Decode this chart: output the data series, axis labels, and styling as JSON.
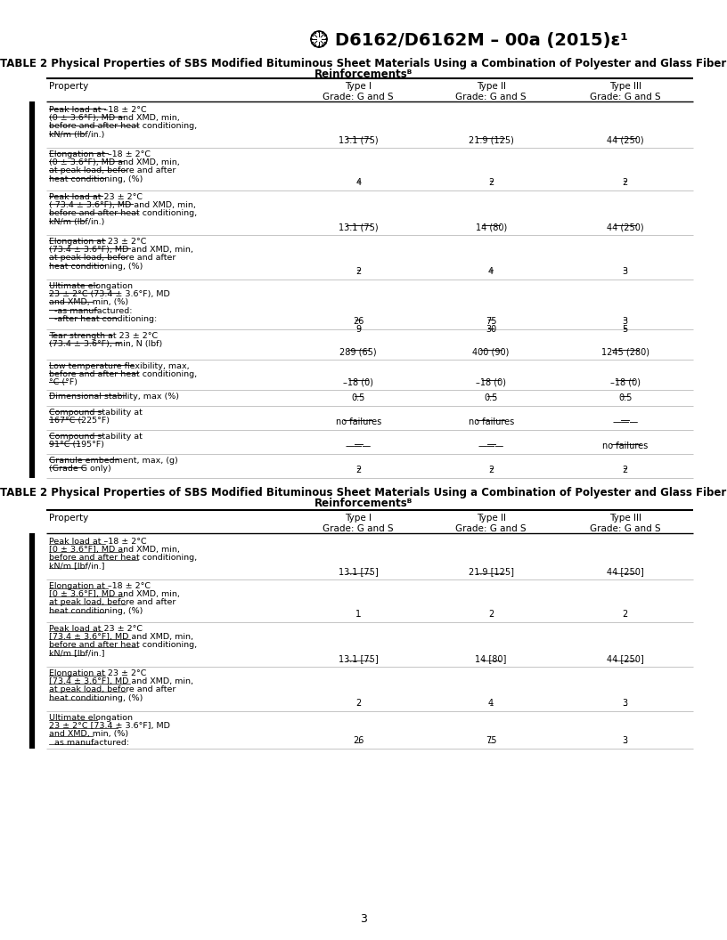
{
  "title": "D6162/D6162M – 00a (2015)ε¹",
  "page_num": "3",
  "table_title_line1": "TABLE 2 Physical Properties of SBS Modified Bituminous Sheet Materials Using a Combination of Polyester and Glass Fiber",
  "table_title_line2": "Reinforcementsᴮ",
  "col_header_property": "Property",
  "col_header_type1": "Type I\nGrade: G and S",
  "col_header_type2": "Type II\nGrade: G and S",
  "col_header_type3": "Type III\nGrade: G and S",
  "redline_rows": [
    {
      "property_lines": [
        "Peak load at –18 ± 2°C",
        "(0 ± 3.6°F), MD and XMD, min,",
        "before and after heat conditioning,",
        "kN/m (lbf/in.)"
      ],
      "type1": "13.1 (75)",
      "type2": "21.9 (125)",
      "type3": "44 (250)",
      "multi_val": false
    },
    {
      "property_lines": [
        "Elongation at –18 ± 2°C",
        "(0 ± 3.6°F), MD and XMD, min,",
        "at peak load, before and after",
        "heat conditioning, (%)"
      ],
      "type1": "4",
      "type2": "2",
      "type3": "2",
      "multi_val": false
    },
    {
      "property_lines": [
        "Peak load at 23 ± 2°C",
        "( 73.4 ± 3.6°F), MD and XMD, min,",
        "before and after heat conditioning,",
        "kN/m (lbf/in.)"
      ],
      "type1": "13.1 (75)",
      "type2": "14 (80)",
      "type3": "44 (250)",
      "multi_val": false
    },
    {
      "property_lines": [
        "Elongation at 23 ± 2°C",
        "(73.4 ± 3.6°F), MD and XMD, min,",
        "at peak load, before and after",
        "heat conditioning, (%)"
      ],
      "type1": "2",
      "type2": "4",
      "type3": "3",
      "multi_val": false
    },
    {
      "property_lines": [
        "Ultimate elongation",
        "23 ± 2°C (73.4 ± 3.6°F), MD",
        "and XMD, min, (%)",
        "  -as manufactured:",
        "  -after heat conditioning:"
      ],
      "type1": [
        "26",
        "9"
      ],
      "type2": [
        "75",
        "30"
      ],
      "type3": [
        "3",
        "5"
      ],
      "multi_val": true
    },
    {
      "property_lines": [
        "Tear strength at 23 ± 2°C",
        "(73.4 ± 3.6°F), min, N (lbf)"
      ],
      "type1": "289 (65)",
      "type2": "400 (90)",
      "type3": "1245 (280)",
      "multi_val": false
    },
    {
      "property_lines": [
        "Low temperature flexibility, max,",
        "before and after heat conditioning,",
        "°C (°F)"
      ],
      "type1": "–18 (0)",
      "type2": "–18 (0)",
      "type3": "–18 (0)",
      "multi_val": false
    },
    {
      "property_lines": [
        "Dimensional stability, max (%)"
      ],
      "type1": "0.5",
      "type2": "0.5",
      "type3": "0.5",
      "multi_val": false
    },
    {
      "property_lines": [
        "Compound stability at",
        "167°C (225°F)"
      ],
      "type1": "no failures",
      "type2": "no failures",
      "type3": "———",
      "multi_val": false
    },
    {
      "property_lines": [
        "Compound stability at",
        "91°C (195°F)"
      ],
      "type1": "———",
      "type2": "———",
      "type3": "no failures",
      "multi_val": false
    },
    {
      "property_lines": [
        "Granule embedment, max, (g)",
        "(Grade G only)"
      ],
      "type1": "2",
      "type2": "2",
      "type3": "2",
      "multi_val": false
    }
  ],
  "clean_rows": [
    {
      "property_lines": [
        "Peak load at –18 ± 2°C",
        "[0 ± 3.6°F], MD and XMD, min,",
        "before and after heat conditioning,",
        "kN/m [lbf/in.]"
      ],
      "type1": "13.1 [75]",
      "type2": "21.9 [125]",
      "type3": "44 [250]"
    },
    {
      "property_lines": [
        "Elongation at –18 ± 2°C",
        "[0 ± 3.6°F], MD and XMD, min,",
        "at peak load, before and after",
        "heat conditioning, (%)"
      ],
      "type1": "1",
      "type2": "2",
      "type3": "2"
    },
    {
      "property_lines": [
        "Peak load at 23 ± 2°C",
        "[73.4 ± 3.6°F], MD and XMD, min,",
        "before and after heat conditioning,",
        "kN/m [lbf/in.]"
      ],
      "type1": "13.1 [75]",
      "type2": "14 [80]",
      "type3": "44 [250]"
    },
    {
      "property_lines": [
        "Elongation at 23 ± 2°C",
        "[73.4 ± 3.6°F], MD and XMD, min,",
        "at peak load, before and after",
        "heat conditioning, (%)"
      ],
      "type1": "2",
      "type2": "4",
      "type3": "3"
    },
    {
      "property_lines": [
        "Ultimate elongation",
        "23 ± 2°C [73.4 ± 3.6°F], MD",
        "and XMD, min, (%)",
        "  as manufactured:"
      ],
      "type1": "26",
      "type2": "75",
      "type3": "3"
    }
  ],
  "bg_color": "#ffffff",
  "font_size": 7.0,
  "header_font_size": 7.5,
  "title_font_size": 14.0,
  "table_title_font_size": 8.5,
  "redline_heights": [
    50,
    48,
    50,
    50,
    56,
    34,
    34,
    18,
    27,
    27,
    27
  ],
  "clean_heights": [
    50,
    48,
    50,
    50,
    42
  ]
}
